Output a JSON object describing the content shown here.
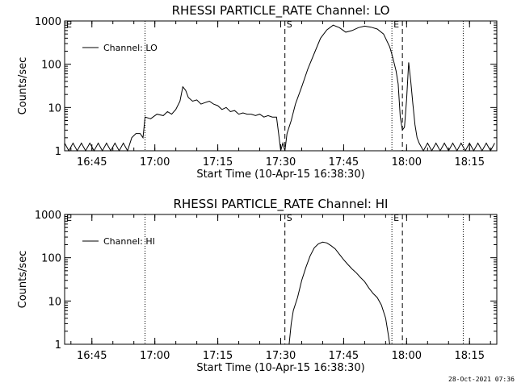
{
  "chart_data": [
    {
      "type": "line",
      "title": "RHESSI PARTICLE_RATE Channel: LO",
      "xlabel": "Start Time (10-Apr-15 16:38:30)",
      "ylabel": "Counts/sec",
      "y_scale": "log",
      "ylim": [
        1,
        1000
      ],
      "xlim": [
        "16:38:30",
        "18:21:30"
      ],
      "x_ticks": [
        "16:45",
        "17:00",
        "17:15",
        "17:30",
        "17:45",
        "18:00",
        "18:15"
      ],
      "y_ticks": [
        "1",
        "10",
        "100",
        "1000"
      ],
      "legend": {
        "position": "top-left",
        "entries": [
          "Channel: LO"
        ]
      },
      "markers": [
        {
          "label": "S",
          "time": "17:31:00",
          "style": "dashed"
        },
        {
          "label": "E",
          "time": "17:56:30",
          "style": "dotted"
        }
      ],
      "dotted_lines": [
        "16:57:40",
        "17:56:30",
        "18:13:30"
      ],
      "dashed_lines": [
        "17:31:00",
        "17:59:00"
      ],
      "series": [
        {
          "name": "Channel: LO",
          "x": [
            "16:38:30",
            "16:39:30",
            "16:40:30",
            "16:41:30",
            "16:42:30",
            "16:43:30",
            "16:44:30",
            "16:45:30",
            "16:46:30",
            "16:47:30",
            "16:48:30",
            "16:49:30",
            "16:50:30",
            "16:51:30",
            "16:52:30",
            "16:53:30",
            "16:54:30",
            "16:55:30",
            "16:56:30",
            "16:57:10",
            "16:57:40",
            "16:59:00",
            "17:00:30",
            "17:02:00",
            "17:03:00",
            "17:04:00",
            "17:05:00",
            "17:06:00",
            "17:06:40",
            "17:07:20",
            "17:08:00",
            "17:09:00",
            "17:10:00",
            "17:11:00",
            "17:12:00",
            "17:13:00",
            "17:14:00",
            "17:15:00",
            "17:16:00",
            "17:17:00",
            "17:18:00",
            "17:19:00",
            "17:20:00",
            "17:21:00",
            "17:22:00",
            "17:23:00",
            "17:24:00",
            "17:25:00",
            "17:26:00",
            "17:27:00",
            "17:28:00",
            "17:29:00",
            "17:29:30",
            "17:30:00",
            "17:30:30",
            "17:31:00",
            "17:31:30",
            "17:32:30",
            "17:33:30",
            "17:35:00",
            "17:36:30",
            "17:38:00",
            "17:39:30",
            "17:41:00",
            "17:42:30",
            "17:44:00",
            "17:45:30",
            "17:47:00",
            "17:48:30",
            "17:50:00",
            "17:51:30",
            "17:53:00",
            "17:54:30",
            "17:56:00",
            "17:56:30",
            "17:57:00",
            "17:57:30",
            "17:58:00",
            "17:58:30",
            "17:59:00",
            "17:59:30",
            "18:00:00",
            "18:00:30",
            "18:01:00",
            "18:01:30",
            "18:02:00",
            "18:02:30",
            "18:03:00",
            "18:04:00",
            "18:05:00",
            "18:06:00",
            "18:07:00",
            "18:08:00",
            "18:09:00",
            "18:10:00",
            "18:11:00",
            "18:12:00",
            "18:13:00",
            "18:14:00",
            "18:15:00",
            "18:16:00",
            "18:17:00",
            "18:18:00",
            "18:19:00",
            "18:20:00",
            "18:21:00"
          ],
          "y": [
            1.5,
            1,
            1.5,
            1,
            1.5,
            1,
            1.5,
            1,
            1.5,
            1,
            1.5,
            1,
            1.5,
            1,
            1.5,
            1,
            2,
            2.5,
            2.5,
            2,
            6,
            5.5,
            7,
            6.5,
            8,
            7,
            9,
            14,
            30,
            25,
            17,
            14,
            15,
            12,
            13,
            14,
            12,
            11,
            9,
            10,
            8,
            8.5,
            7,
            7.5,
            7,
            7,
            6.5,
            7,
            6,
            6.5,
            6,
            6,
            2.5,
            1,
            1.5,
            1,
            2.5,
            5,
            12,
            30,
            80,
            180,
            400,
            620,
            800,
            700,
            550,
            600,
            700,
            760,
            720,
            650,
            500,
            250,
            170,
            110,
            70,
            35,
            6,
            3,
            3.5,
            15,
            110,
            40,
            12,
            4,
            2,
            1.5,
            1,
            1.5,
            1,
            1.5,
            1,
            1.5,
            1,
            1.5,
            1,
            1.5,
            1,
            1.5,
            1,
            1.5,
            1,
            1.5,
            1,
            1.5
          ]
        }
      ]
    },
    {
      "type": "line",
      "title": "RHESSI PARTICLE_RATE Channel: HI",
      "xlabel": "Start Time (10-Apr-15 16:38:30)",
      "ylabel": "Counts/sec",
      "y_scale": "log",
      "ylim": [
        1,
        1000
      ],
      "xlim": [
        "16:38:30",
        "18:21:30"
      ],
      "x_ticks": [
        "16:45",
        "17:00",
        "17:15",
        "17:30",
        "17:45",
        "18:00",
        "18:15"
      ],
      "y_ticks": [
        "1",
        "10",
        "100",
        "1000"
      ],
      "legend": {
        "position": "top-left",
        "entries": [
          "Channel: HI"
        ]
      },
      "markers": [
        {
          "label": "S",
          "time": "17:31:00",
          "style": "dashed"
        },
        {
          "label": "E",
          "time": "17:56:30",
          "style": "dotted"
        }
      ],
      "dotted_lines": [
        "16:57:40",
        "17:56:30",
        "18:13:30"
      ],
      "dashed_lines": [
        "17:31:00",
        "17:59:00"
      ],
      "series": [
        {
          "name": "Channel: HI",
          "x": [
            "17:32:00",
            "17:32:30",
            "17:33:00",
            "17:34:00",
            "17:35:00",
            "17:36:00",
            "17:37:00",
            "17:38:00",
            "17:39:00",
            "17:40:00",
            "17:41:00",
            "17:42:00",
            "17:43:00",
            "17:44:00",
            "17:45:00",
            "17:46:00",
            "17:47:00",
            "17:48:00",
            "17:49:00",
            "17:50:00",
            "17:51:00",
            "17:52:00",
            "17:53:00",
            "17:54:00",
            "17:55:00",
            "17:55:30",
            "17:56:00"
          ],
          "y": [
            1,
            3,
            6,
            12,
            30,
            60,
            110,
            170,
            210,
            230,
            220,
            190,
            160,
            120,
            90,
            70,
            55,
            45,
            35,
            28,
            20,
            15,
            12,
            8,
            4,
            2,
            1
          ]
        }
      ]
    }
  ],
  "footer": {
    "timestamp": "28-Oct-2021 07:36"
  }
}
